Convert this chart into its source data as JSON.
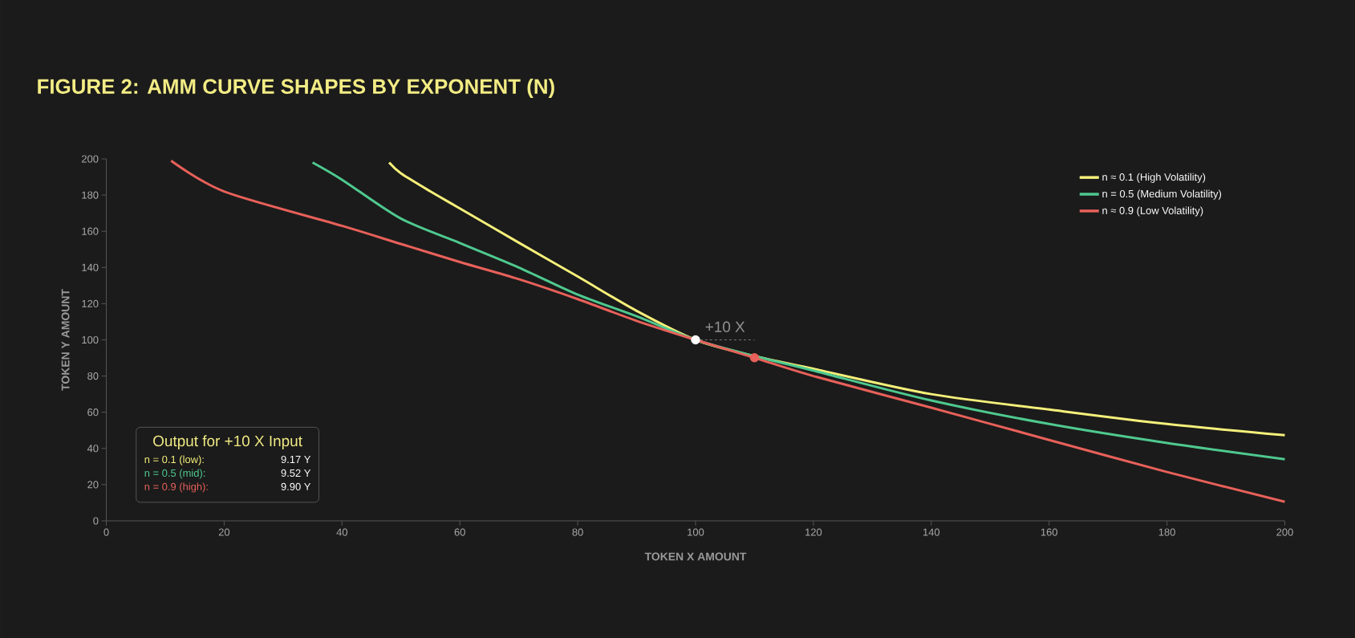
{
  "chart_data": {
    "type": "line",
    "title": "FIGURE 2: AMM CURVE SHAPES BY EXPONENT (N)",
    "xlabel": "TOKEN X AMOUNT",
    "ylabel": "TOKEN Y AMOUNT",
    "xlim": [
      0,
      200
    ],
    "ylim": [
      0,
      200
    ],
    "xticks": [
      0,
      20,
      40,
      60,
      80,
      100,
      120,
      140,
      160,
      180,
      200
    ],
    "yticks": [
      0,
      20,
      40,
      60,
      80,
      100,
      120,
      140,
      160,
      180,
      200
    ],
    "grid": false,
    "legend": "top right",
    "line_style": "solid",
    "series": [
      {
        "name": "n ≈ 0.1 (High Volatility)",
        "color": "#f5f07a",
        "x": [
          48,
          50,
          55,
          60,
          70,
          80,
          90,
          100,
          110,
          120,
          140,
          160,
          180,
          200
        ],
        "values": [
          198,
          192,
          182,
          172.6,
          153.7,
          135,
          116,
          100,
          91,
          84,
          70,
          61.5,
          53.5,
          47.3
        ]
      },
      {
        "name": "n = 0.5 (Medium Volatility)",
        "color": "#4fc98f",
        "x": [
          35,
          40,
          50,
          60,
          70,
          80,
          90,
          100,
          110,
          120,
          140,
          160,
          180,
          200
        ],
        "values": [
          198,
          188.5,
          167,
          153.5,
          140,
          125,
          113,
          100,
          91,
          83,
          66.5,
          53.5,
          43,
          34
        ]
      },
      {
        "name": "n ≈ 0.9 (Low Volatility)",
        "color": "#e8615a",
        "x": [
          11,
          20,
          40,
          50,
          60,
          70,
          80,
          90,
          100,
          110,
          120,
          140,
          160,
          180,
          200
        ],
        "values": [
          199,
          182,
          163,
          153,
          143,
          133.5,
          122.5,
          110.5,
          100,
          90.1,
          80,
          62.5,
          44.7,
          27,
          10.5
        ]
      },
      {
        "type": "line",
        "line_style": "dashed",
        "color": "#777777",
        "x": [
          100,
          110
        ],
        "values": [
          100,
          100
        ]
      },
      {
        "type": "scatter",
        "marker": "circle",
        "color": "#ffffff",
        "x": [
          100
        ],
        "values": [
          100
        ]
      },
      {
        "type": "scatter",
        "marker": "circle",
        "color": "#e8615a",
        "x": [
          110
        ],
        "values": [
          90.1
        ]
      }
    ],
    "annotations": [
      "Output for +10 X Input",
      "n = 0.1 (low):",
      "9.17 Y",
      "n = 0.5 (mid):",
      "9.52 Y",
      "n = 0.9 (high):",
      "9.90 Y",
      {
        "text": "+10 X",
        "x": 105,
        "y": 100
      }
    ]
  }
}
